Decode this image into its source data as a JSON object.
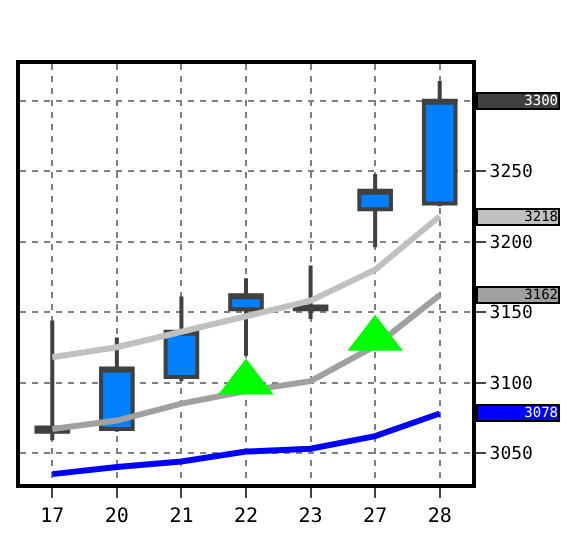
{
  "chart_data": {
    "type": "candlestick",
    "categories": [
      "17",
      "20",
      "21",
      "22",
      "23",
      "27",
      "28"
    ],
    "ohlc": [
      [
        3068,
        3144,
        3059,
        3065
      ],
      [
        3067,
        3132,
        3065,
        3110
      ],
      [
        3104,
        3161,
        3101,
        3136
      ],
      [
        3152,
        3174,
        3119,
        3162
      ],
      [
        3154,
        3183,
        3145,
        3152
      ],
      [
        3223,
        3248,
        3196,
        3236
      ],
      [
        3227,
        3314,
        3225,
        3300
      ]
    ],
    "series": [
      {
        "type": "line",
        "color": "#c0c0c0",
        "values": [
          3118,
          3125,
          3136,
          3147,
          3158,
          3180,
          3218
        ]
      },
      {
        "type": "line",
        "color": "#a0a0a0",
        "values": [
          3067,
          3073,
          3085,
          3094,
          3101,
          3126,
          3162
        ]
      },
      {
        "type": "line",
        "color": "#0000ff",
        "values": [
          3035,
          3040,
          3044,
          3051,
          3053,
          3062,
          3078
        ]
      },
      {
        "type": "scatter",
        "color": "#00ff00",
        "marker": "triangle",
        "x": [
          "22",
          "27"
        ],
        "values": [
          3100,
          3131
        ]
      }
    ],
    "ylim": [
      3028,
      3326
    ],
    "yticks": [
      3050,
      3100,
      3150,
      3200,
      3250,
      {
        "value": 3300,
        "label": null
      }
    ],
    "grid": true,
    "annotations": [
      "3300",
      "3218",
      "3162",
      "3078"
    ]
  }
}
